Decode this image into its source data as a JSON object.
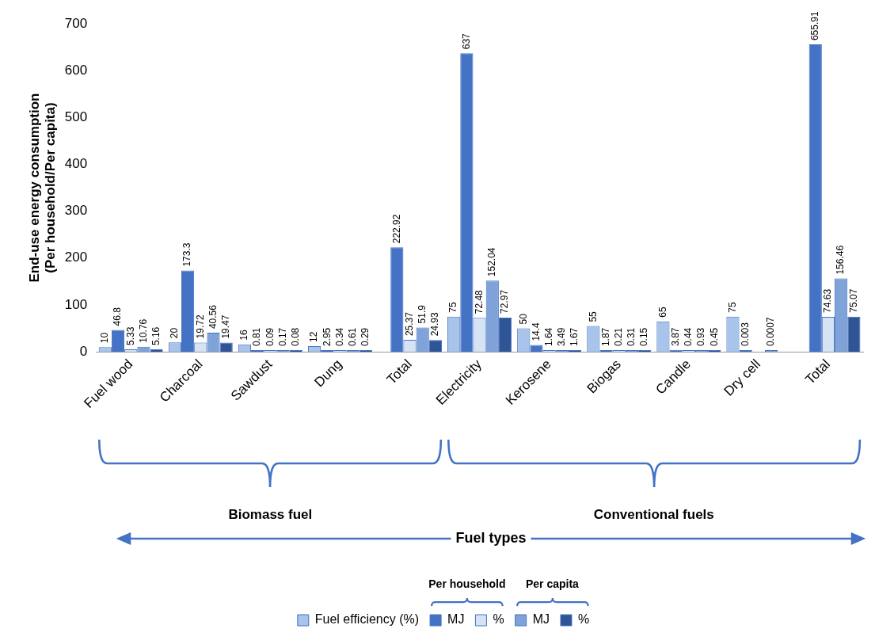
{
  "chart_data": {
    "type": "bar",
    "ylabel": "End-use energy consumption\n(Per household/Per capita)",
    "categories": [
      "Fuel wood",
      "Charcoal",
      "Sawdust",
      "Dung",
      "Total",
      "Electricity",
      "Kerosene",
      "Biogas",
      "Candle",
      "Dry cell",
      "Total"
    ],
    "series": [
      {
        "name": "Fuel efficiency (%)",
        "color": "#a9c4ea",
        "values": [
          10,
          20,
          16,
          12,
          null,
          75,
          50,
          55,
          65,
          75,
          null
        ]
      },
      {
        "name": "MJ",
        "color": "#4472c4",
        "values": [
          46.8,
          173.3,
          0.81,
          2.95,
          222.92,
          637,
          14.4,
          1.87,
          3.87,
          0.003,
          655.91
        ]
      },
      {
        "name": "%",
        "color": "#d6e3f5",
        "values": [
          5.33,
          19.72,
          0.09,
          0.34,
          25.37,
          72.48,
          1.64,
          0.21,
          0.44,
          null,
          74.63
        ]
      },
      {
        "name": "MJ",
        "color": "#7fa3d8",
        "values": [
          10.76,
          40.56,
          0.17,
          0.61,
          51.9,
          152.04,
          3.49,
          0.31,
          0.93,
          0.0007,
          156.46
        ]
      },
      {
        "name": "%",
        "color": "#2f5597",
        "values": [
          5.16,
          19.47,
          0.08,
          0.29,
          24.93,
          72.97,
          1.67,
          0.15,
          0.45,
          null,
          75.07
        ]
      }
    ],
    "ylim": [
      0,
      700
    ],
    "yticks": [
      0,
      100,
      200,
      300,
      400,
      500,
      600,
      700
    ],
    "grid": false,
    "legend": "bottom",
    "data_labels": true,
    "annotations": [
      "Biomass fuel",
      "Conventional fuels",
      "Fuel types",
      "Per household",
      "Per capita"
    ]
  }
}
